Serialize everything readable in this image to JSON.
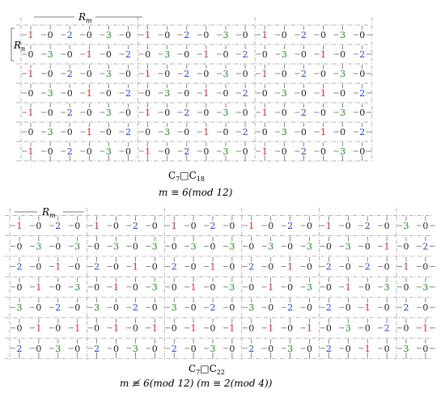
{
  "colors": {
    "0": "#222222",
    "1": "#e02020",
    "2": "#1f3fd6",
    "3": "#1a8c1a",
    "edge": "#555555",
    "dash": "#9a9a9a"
  },
  "top": {
    "rm_label": "R_m",
    "rn_label": "R_n",
    "graph_caption": "C_7□C_18",
    "condition": "m ≡ 6(mod 12)",
    "rows": [
      [
        1,
        0,
        2,
        0,
        3,
        0,
        1,
        0,
        2,
        0,
        3,
        0,
        1,
        0,
        2,
        0,
        3,
        0
      ],
      [
        0,
        3,
        0,
        1,
        0,
        2,
        0,
        3,
        0,
        1,
        0,
        2,
        0,
        3,
        0,
        1,
        0,
        2
      ],
      [
        1,
        0,
        2,
        0,
        3,
        0,
        1,
        0,
        2,
        0,
        3,
        0,
        1,
        0,
        2,
        0,
        3,
        0
      ],
      [
        0,
        3,
        0,
        1,
        0,
        2,
        0,
        3,
        0,
        1,
        0,
        2,
        0,
        3,
        0,
        1,
        0,
        2
      ],
      [
        1,
        0,
        2,
        0,
        3,
        0,
        1,
        0,
        2,
        0,
        3,
        0,
        1,
        0,
        2,
        0,
        3,
        0
      ],
      [
        0,
        3,
        0,
        1,
        0,
        2,
        0,
        3,
        0,
        1,
        0,
        2,
        0,
        3,
        0,
        1,
        0,
        2
      ],
      [
        1,
        0,
        2,
        0,
        3,
        0,
        1,
        0,
        2,
        0,
        3,
        0,
        1,
        0,
        2,
        0,
        3,
        0
      ]
    ]
  },
  "bottom": {
    "rm_label": "R_m",
    "graph_caption": "C_7□C_22",
    "condition": "m ≢ 6(mod 12) (m ≡ 2(mod 4))",
    "rows": [
      [
        1,
        0,
        2,
        0,
        1,
        0,
        2,
        0,
        1,
        0,
        2,
        0,
        1,
        0,
        2,
        0,
        1,
        0,
        2,
        0,
        3,
        0
      ],
      [
        0,
        3,
        0,
        3,
        0,
        3,
        0,
        3,
        0,
        3,
        0,
        3,
        0,
        3,
        0,
        3,
        0,
        3,
        0,
        1,
        0,
        2
      ],
      [
        2,
        0,
        1,
        0,
        2,
        0,
        1,
        0,
        2,
        0,
        1,
        0,
        2,
        0,
        1,
        0,
        2,
        0,
        2,
        0,
        1,
        0
      ],
      [
        0,
        1,
        0,
        3,
        0,
        1,
        0,
        3,
        0,
        1,
        0,
        3,
        0,
        1,
        0,
        3,
        0,
        1,
        0,
        3,
        0,
        3
      ],
      [
        3,
        0,
        2,
        0,
        3,
        0,
        2,
        0,
        3,
        0,
        2,
        0,
        3,
        0,
        2,
        0,
        2,
        0,
        1,
        0,
        2,
        0
      ],
      [
        0,
        1,
        0,
        1,
        0,
        1,
        0,
        1,
        0,
        1,
        0,
        1,
        0,
        1,
        0,
        1,
        0,
        3,
        0,
        2,
        0,
        1
      ],
      [
        2,
        0,
        3,
        0,
        2,
        0,
        3,
        0,
        2,
        0,
        3,
        0,
        2,
        0,
        3,
        0,
        2,
        0,
        1,
        0,
        3,
        0
      ]
    ]
  }
}
